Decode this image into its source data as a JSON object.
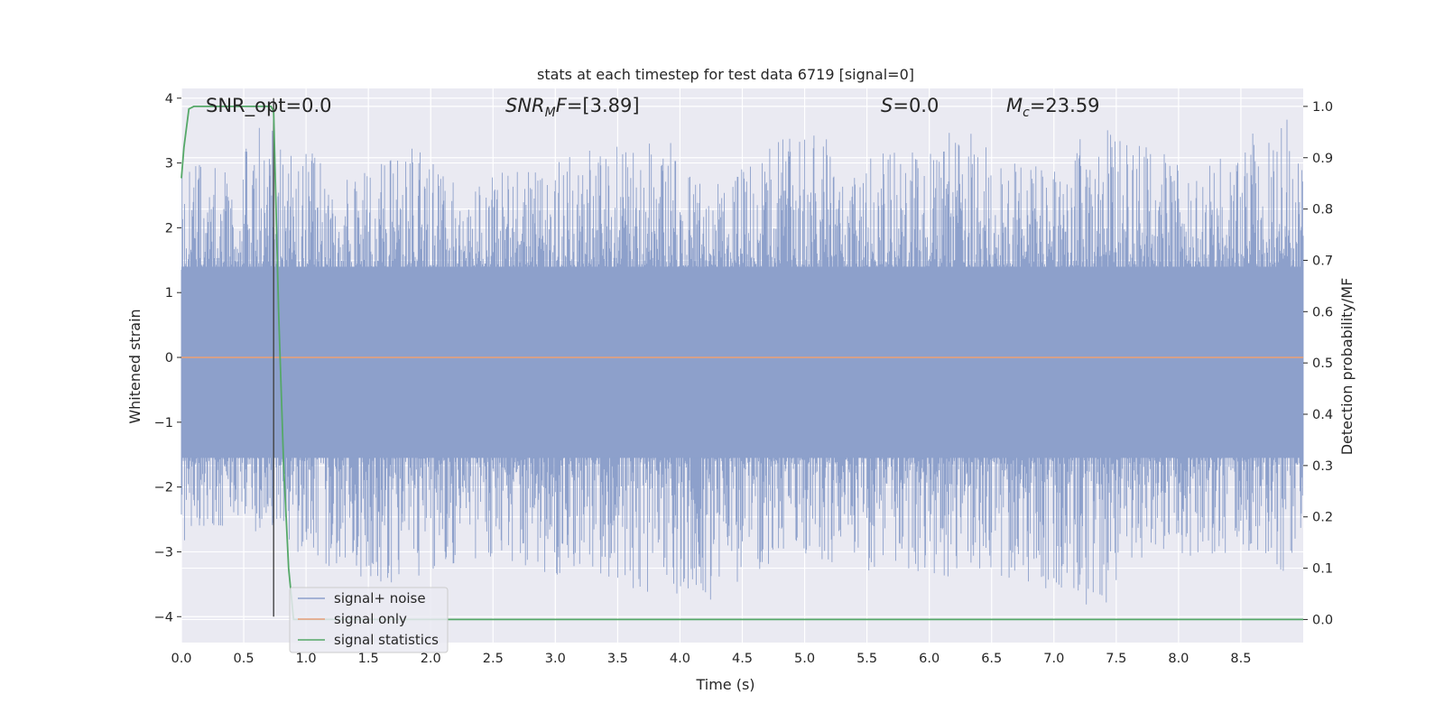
{
  "chart_data": {
    "type": "line",
    "title": "stats at each timestep for test data 6719 [signal=0]",
    "xlabel": "Time (s)",
    "ylabel": "Whitened strain",
    "ylabel_right": "Detection probability/MF",
    "xlim": [
      0,
      9
    ],
    "ylim": [
      -4.4,
      4.15
    ],
    "ylim_right": [
      -0.045,
      1.035
    ],
    "x_ticks": [
      "0.0",
      "0.5",
      "1.0",
      "1.5",
      "2.0",
      "2.5",
      "3.0",
      "3.5",
      "4.0",
      "4.5",
      "5.0",
      "5.5",
      "6.0",
      "6.5",
      "7.0",
      "7.5",
      "8.0",
      "8.5"
    ],
    "y_ticks": [
      "4",
      "3",
      "2",
      "1",
      "0",
      "−1",
      "−2",
      "−3",
      "−4"
    ],
    "y_ticks_right": [
      "1.0",
      "0.9",
      "0.8",
      "0.7",
      "0.6",
      "0.5",
      "0.4",
      "0.3",
      "0.2",
      "0.1",
      "0.0"
    ],
    "annotations": {
      "snr_opt": "SNR_opt=0.0",
      "snr_mf": "=[3.89]",
      "s_value": "=0.0",
      "mc_value": "=23.59"
    },
    "series": [
      {
        "name": "signal+ noise",
        "color": "#8da0cb",
        "axis": "left",
        "description_values": "whitened noise, approximately within [-4, 4]",
        "envelope_top": [
          [
            0,
            3.3
          ],
          [
            0.2,
            3.0
          ],
          [
            0.4,
            3.1
          ],
          [
            0.45,
            3.2
          ],
          [
            0.75,
            3.8
          ],
          [
            1.0,
            3.2
          ],
          [
            1.4,
            2.8
          ],
          [
            1.9,
            3.3
          ],
          [
            2.2,
            2.7
          ],
          [
            2.8,
            3.0
          ],
          [
            3.3,
            3.2
          ],
          [
            3.85,
            3.5
          ],
          [
            4.2,
            2.6
          ],
          [
            5.0,
            3.6
          ],
          [
            5.4,
            3.1
          ],
          [
            5.95,
            3.3
          ],
          [
            6.3,
            3.6
          ],
          [
            6.6,
            3.0
          ],
          [
            7.0,
            3.2
          ],
          [
            7.5,
            3.6
          ],
          [
            8.0,
            3.0
          ],
          [
            8.5,
            3.3
          ],
          [
            8.85,
            3.9
          ],
          [
            9.0,
            3.2
          ]
        ],
        "envelope_bottom": [
          [
            0,
            -3.0
          ],
          [
            0.1,
            -2.8
          ],
          [
            0.5,
            -2.6
          ],
          [
            1.45,
            -3.5
          ],
          [
            1.55,
            -3.7
          ],
          [
            2.1,
            -3.2
          ],
          [
            3.55,
            -3.5
          ],
          [
            3.6,
            -3.6
          ],
          [
            4.3,
            -3.9
          ],
          [
            4.9,
            -3.0
          ],
          [
            5.5,
            -3.3
          ],
          [
            6.7,
            -3.5
          ],
          [
            7.4,
            -3.9
          ],
          [
            7.6,
            -3.1
          ],
          [
            8.2,
            -3.2
          ],
          [
            8.65,
            -3.0
          ],
          [
            8.95,
            -3.5
          ],
          [
            9.0,
            -3.0
          ]
        ]
      },
      {
        "name": "signal only",
        "color": "#e6a07a",
        "axis": "left",
        "x": [
          0,
          9
        ],
        "y": [
          0,
          0
        ]
      },
      {
        "name": "signal statistics",
        "color": "#55a868",
        "axis": "right",
        "x": [
          0,
          0.02,
          0.06,
          0.1,
          0.15,
          0.72,
          0.74,
          0.78,
          0.82,
          0.86,
          0.9,
          1.0,
          9.0
        ],
        "y": [
          0.86,
          0.92,
          0.995,
          1.0,
          1.0,
          1.0,
          0.99,
          0.6,
          0.3,
          0.1,
          0.0,
          0.0,
          0.0
        ]
      }
    ],
    "vertical_line": {
      "x": 0.74,
      "y_from": -4,
      "y_to": 4,
      "color": "#444444"
    },
    "legend": {
      "placement": "lower-left",
      "entries": [
        "signal+ noise",
        "signal only",
        "signal statistics"
      ]
    },
    "grid": true
  }
}
